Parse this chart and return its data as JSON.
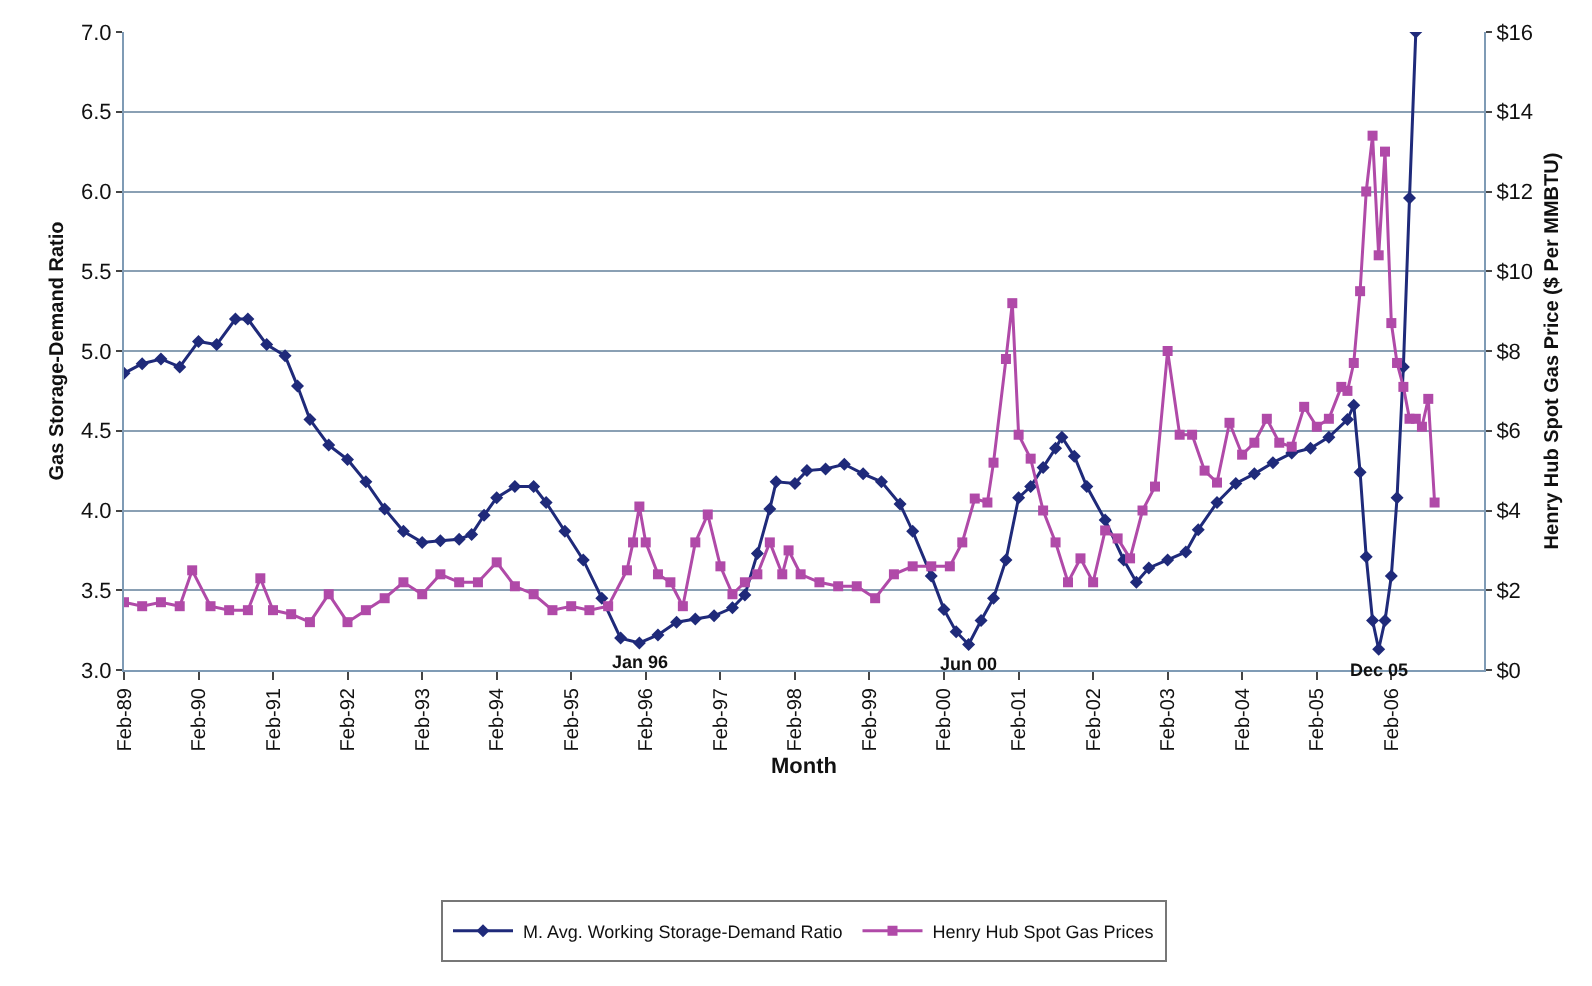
{
  "chart_data": {
    "type": "line",
    "xlabel": "Month",
    "ylabel": "Gas Storage-Demand Ratio",
    "y2label": "Henry Hub Spot Gas Price ($ Per MMBTU)",
    "xlim": [
      "1989-02",
      "2007-05"
    ],
    "xticks": [
      {
        "value": "1989-02",
        "label": "Feb-89"
      },
      {
        "value": "1990-02",
        "label": "Feb-90"
      },
      {
        "value": "1991-02",
        "label": "Feb-91"
      },
      {
        "value": "1992-02",
        "label": "Feb-92"
      },
      {
        "value": "1993-02",
        "label": "Feb-93"
      },
      {
        "value": "1994-02",
        "label": "Feb-94"
      },
      {
        "value": "1995-02",
        "label": "Feb-95"
      },
      {
        "value": "1996-02",
        "label": "Feb-96"
      },
      {
        "value": "1997-02",
        "label": "Feb-97"
      },
      {
        "value": "1998-02",
        "label": "Feb-98"
      },
      {
        "value": "1999-02",
        "label": "Feb-99"
      },
      {
        "value": "2000-02",
        "label": "Feb-00"
      },
      {
        "value": "2001-02",
        "label": "Feb-01"
      },
      {
        "value": "2002-02",
        "label": "Feb-02"
      },
      {
        "value": "2003-02",
        "label": "Feb-03"
      },
      {
        "value": "2004-02",
        "label": "Feb-04"
      },
      {
        "value": "2005-02",
        "label": "Feb-05"
      },
      {
        "value": "2006-02",
        "label": "Feb-06"
      }
    ],
    "ylim": [
      3.0,
      7.0
    ],
    "yticks": [
      {
        "value": 3,
        "label": "3.0"
      },
      3.5,
      {
        "value": 4,
        "label": "4.0"
      },
      4.5,
      {
        "value": 5,
        "label": "5.0"
      },
      5.5,
      {
        "value": 6,
        "label": "6.0"
      },
      6.5,
      {
        "value": 7,
        "label": "7.0"
      }
    ],
    "y2lim": [
      0,
      16
    ],
    "y2ticks": [
      {
        "value": 0,
        "label": "$0"
      },
      {
        "value": 2,
        "label": "$2"
      },
      {
        "value": 4,
        "label": "$4"
      },
      {
        "value": 6,
        "label": "$6"
      },
      {
        "value": 8,
        "label": "$8"
      },
      {
        "value": 10,
        "label": "$10"
      },
      {
        "value": 12,
        "label": "$12"
      },
      {
        "value": 14,
        "label": "$14"
      },
      {
        "value": 16,
        "label": "$16"
      }
    ],
    "grid": "y",
    "legend": "bottom",
    "line_style": "solid",
    "series": [
      {
        "name": "M. Avg. Working Storage-Demand Ratio",
        "color": "#1f2a7a",
        "marker": "diamond",
        "x": [
          "1989-02",
          "1989-05",
          "1989-08",
          "1989-11",
          "1990-02",
          "1990-05",
          "1990-08",
          "1990-10",
          "1991-01",
          "1991-04",
          "1991-06",
          "1991-08",
          "1991-11",
          "1992-02",
          "1992-05",
          "1992-08",
          "1992-11",
          "1993-02",
          "1993-05",
          "1993-08",
          "1993-10",
          "1993-12",
          "1994-02",
          "1994-05",
          "1994-08",
          "1994-10",
          "1995-01",
          "1995-04",
          "1995-07",
          "1995-10",
          "1996-01",
          "1996-04",
          "1996-07",
          "1996-10",
          "1997-01",
          "1997-04",
          "1997-06",
          "1997-08",
          "1997-10",
          "1997-11",
          "1998-02",
          "1998-04",
          "1998-07",
          "1998-10",
          "1999-01",
          "1999-04",
          "1999-07",
          "1999-09",
          "1999-12",
          "2000-02",
          "2000-04",
          "2000-06",
          "2000-08",
          "2000-10",
          "2000-12",
          "2001-02",
          "2001-04",
          "2001-06",
          "2001-08",
          "2001-09",
          "2001-11",
          "2002-01",
          "2002-04",
          "2002-07",
          "2002-09",
          "2002-11",
          "2003-02",
          "2003-05",
          "2003-07",
          "2003-10",
          "2004-01",
          "2004-04",
          "2004-07",
          "2004-10",
          "2005-01",
          "2005-04",
          "2005-07",
          "2005-08",
          "2005-09",
          "2005-10",
          "2005-11",
          "2005-12",
          "2006-01",
          "2006-02",
          "2006-03",
          "2006-04",
          "2006-05",
          "2006-06"
        ],
        "values": [
          4.86,
          4.92,
          4.95,
          4.9,
          5.06,
          5.04,
          5.2,
          5.2,
          5.04,
          4.97,
          4.78,
          4.57,
          4.41,
          4.32,
          4.18,
          4.01,
          3.87,
          3.8,
          3.81,
          3.82,
          3.85,
          3.97,
          4.08,
          4.15,
          4.15,
          4.05,
          3.87,
          3.69,
          3.45,
          3.2,
          3.17,
          3.22,
          3.3,
          3.32,
          3.34,
          3.39,
          3.47,
          3.73,
          4.01,
          4.18,
          4.17,
          4.25,
          4.26,
          4.29,
          4.23,
          4.18,
          4.04,
          3.87,
          3.59,
          3.38,
          3.24,
          3.16,
          3.31,
          3.45,
          3.69,
          4.08,
          4.15,
          4.27,
          4.39,
          4.46,
          4.34,
          4.15,
          3.94,
          3.69,
          3.55,
          3.64,
          3.69,
          3.74,
          3.88,
          4.05,
          4.17,
          4.23,
          4.3,
          4.36,
          4.39,
          4.46,
          4.57,
          4.66,
          4.24,
          3.71,
          3.31,
          3.13,
          3.31,
          3.59,
          4.08,
          4.9,
          5.96,
          7.0
        ]
      },
      {
        "name": "Henry Hub Spot Gas Prices",
        "color": "#b04aa8",
        "marker": "square",
        "axis": "y2",
        "x": [
          "1989-02",
          "1989-05",
          "1989-08",
          "1989-11",
          "1990-01",
          "1990-04",
          "1990-07",
          "1990-10",
          "1990-12",
          "1991-02",
          "1991-05",
          "1991-08",
          "1991-11",
          "1992-02",
          "1992-05",
          "1992-08",
          "1992-11",
          "1993-02",
          "1993-05",
          "1993-08",
          "1993-11",
          "1994-02",
          "1994-05",
          "1994-08",
          "1994-11",
          "1995-02",
          "1995-05",
          "1995-08",
          "1995-11",
          "1995-12",
          "1996-01",
          "1996-02",
          "1996-04",
          "1996-06",
          "1996-08",
          "1996-10",
          "1996-12",
          "1997-02",
          "1997-04",
          "1997-06",
          "1997-08",
          "1997-10",
          "1997-12",
          "1998-01",
          "1998-03",
          "1998-06",
          "1998-09",
          "1998-12",
          "1999-03",
          "1999-06",
          "1999-09",
          "1999-12",
          "2000-03",
          "2000-05",
          "2000-07",
          "2000-09",
          "2000-10",
          "2000-12",
          "2001-01",
          "2001-02",
          "2001-04",
          "2001-06",
          "2001-08",
          "2001-10",
          "2001-12",
          "2002-02",
          "2002-04",
          "2002-06",
          "2002-08",
          "2002-10",
          "2002-12",
          "2003-02",
          "2003-04",
          "2003-06",
          "2003-08",
          "2003-10",
          "2003-12",
          "2004-02",
          "2004-04",
          "2004-06",
          "2004-08",
          "2004-10",
          "2004-12",
          "2005-02",
          "2005-04",
          "2005-06",
          "2005-07",
          "2005-08",
          "2005-09",
          "2005-10",
          "2005-11",
          "2005-12",
          "2006-01",
          "2006-02",
          "2006-03",
          "2006-04",
          "2006-05",
          "2006-06",
          "2006-07",
          "2006-08",
          "2006-09"
        ],
        "values": [
          1.7,
          1.6,
          1.7,
          1.6,
          2.5,
          1.6,
          1.5,
          1.5,
          2.3,
          1.5,
          1.4,
          1.2,
          1.9,
          1.2,
          1.5,
          1.8,
          2.2,
          1.9,
          2.4,
          2.2,
          2.2,
          2.7,
          2.1,
          1.9,
          1.5,
          1.6,
          1.5,
          1.6,
          2.5,
          3.2,
          4.1,
          3.2,
          2.4,
          2.2,
          1.6,
          3.2,
          3.9,
          2.6,
          1.9,
          2.2,
          2.4,
          3.2,
          2.4,
          3.0,
          2.4,
          2.2,
          2.1,
          2.1,
          1.8,
          2.4,
          2.6,
          2.6,
          2.6,
          3.2,
          4.3,
          4.2,
          5.2,
          7.8,
          9.2,
          5.9,
          5.3,
          4.0,
          3.2,
          2.2,
          2.8,
          2.2,
          3.5,
          3.3,
          2.8,
          4.0,
          4.6,
          8.0,
          5.9,
          5.9,
          5.0,
          4.7,
          6.2,
          5.4,
          5.7,
          6.3,
          5.7,
          5.6,
          6.6,
          6.1,
          6.3,
          7.1,
          7.0,
          7.7,
          9.5,
          12.0,
          13.4,
          10.4,
          13.0,
          8.7,
          7.7,
          7.1,
          6.3,
          6.3,
          6.1,
          6.8,
          4.2
        ]
      }
    ],
    "annotations": [
      {
        "text": "Jan 96",
        "x": "1996-01",
        "y": 3.17
      },
      {
        "text": "Jun 00",
        "x": "2000-06",
        "y": 3.16
      },
      {
        "text": "Dec 05",
        "x": "2005-12",
        "y": 3.13
      }
    ]
  }
}
